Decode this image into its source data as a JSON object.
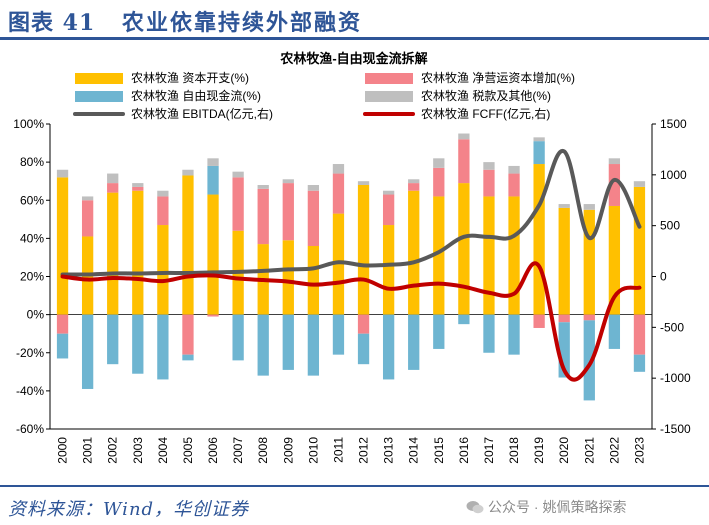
{
  "header": {
    "figure_no": "图表 41",
    "title": "农业依靠持续外部融资"
  },
  "footer": {
    "source": "资料来源：Wind，华创证券",
    "watermark": "公众号 · 姚佩策略探索"
  },
  "colors": {
    "brand": "#2e5597",
    "capex": "#ffc000",
    "wc": "#f4838a",
    "fcf": "#6eb5d1",
    "tax": "#bfbfbf",
    "ebitda": "#595959",
    "fcff": "#c00000"
  },
  "chart_data": {
    "type": "bar",
    "title": "农林牧渔-自由现金流拆解",
    "categories": [
      "2000",
      "2001",
      "2002",
      "2003",
      "2004",
      "2005",
      "2006",
      "2007",
      "2008",
      "2009",
      "2010",
      "2011",
      "2012",
      "2013",
      "2014",
      "2015",
      "2016",
      "2017",
      "2018",
      "2019",
      "2020",
      "2021",
      "2022",
      "2023"
    ],
    "stacked": true,
    "y_left": {
      "min": -60,
      "max": 100,
      "step": 20,
      "unit": "%"
    },
    "y_right": {
      "min": -1500,
      "max": 1500,
      "step": 500,
      "unit": "亿元"
    },
    "series": [
      {
        "name": "农林牧渔 资本开支(%)",
        "kind": "bar",
        "axis": "left",
        "values": [
          72,
          41,
          64,
          65,
          47,
          73,
          63,
          44,
          37,
          39,
          36,
          53,
          68,
          47,
          65,
          62,
          69,
          62,
          62,
          79,
          56,
          55,
          57,
          67
        ]
      },
      {
        "name": "农林牧渔 净营运资本增加(%)",
        "kind": "bar",
        "axis": "left",
        "values": [
          -10,
          19,
          5,
          2,
          15,
          -21,
          -1,
          28,
          29,
          30,
          29,
          21,
          -10,
          16,
          4,
          15,
          23,
          14,
          12,
          -7,
          -4,
          -3,
          22,
          -21
        ]
      },
      {
        "name": "农林牧渔 自由现金流(%)",
        "kind": "bar",
        "axis": "left",
        "values": [
          -13,
          -39,
          -26,
          -31,
          -34,
          -3,
          15,
          -24,
          -32,
          -29,
          -32,
          -21,
          -16,
          -34,
          -29,
          -18,
          -5,
          -20,
          -21,
          12,
          -29,
          -42,
          -18,
          -9
        ]
      },
      {
        "name": "农林牧渔 税款及其他(%)",
        "kind": "bar",
        "axis": "left",
        "values": [
          4,
          2,
          5,
          2,
          3,
          3,
          4,
          3,
          2,
          2,
          3,
          5,
          2,
          2,
          2,
          5,
          3,
          4,
          4,
          2,
          2,
          3,
          3,
          3
        ]
      },
      {
        "name": "农林牧渔 EBITDA(亿元,右)",
        "kind": "line",
        "axis": "right",
        "values": [
          20,
          20,
          30,
          30,
          35,
          35,
          40,
          45,
          55,
          70,
          80,
          140,
          110,
          115,
          140,
          240,
          390,
          390,
          400,
          700,
          1230,
          380,
          950,
          490
        ]
      },
      {
        "name": "农林牧渔 FCFF(亿元,右)",
        "kind": "line",
        "axis": "right",
        "values": [
          0,
          -30,
          -15,
          -25,
          -45,
          0,
          10,
          -20,
          -35,
          -50,
          -80,
          -60,
          -30,
          -120,
          -90,
          -70,
          -100,
          -160,
          -170,
          100,
          -920,
          -870,
          -200,
          -110
        ]
      }
    ]
  }
}
